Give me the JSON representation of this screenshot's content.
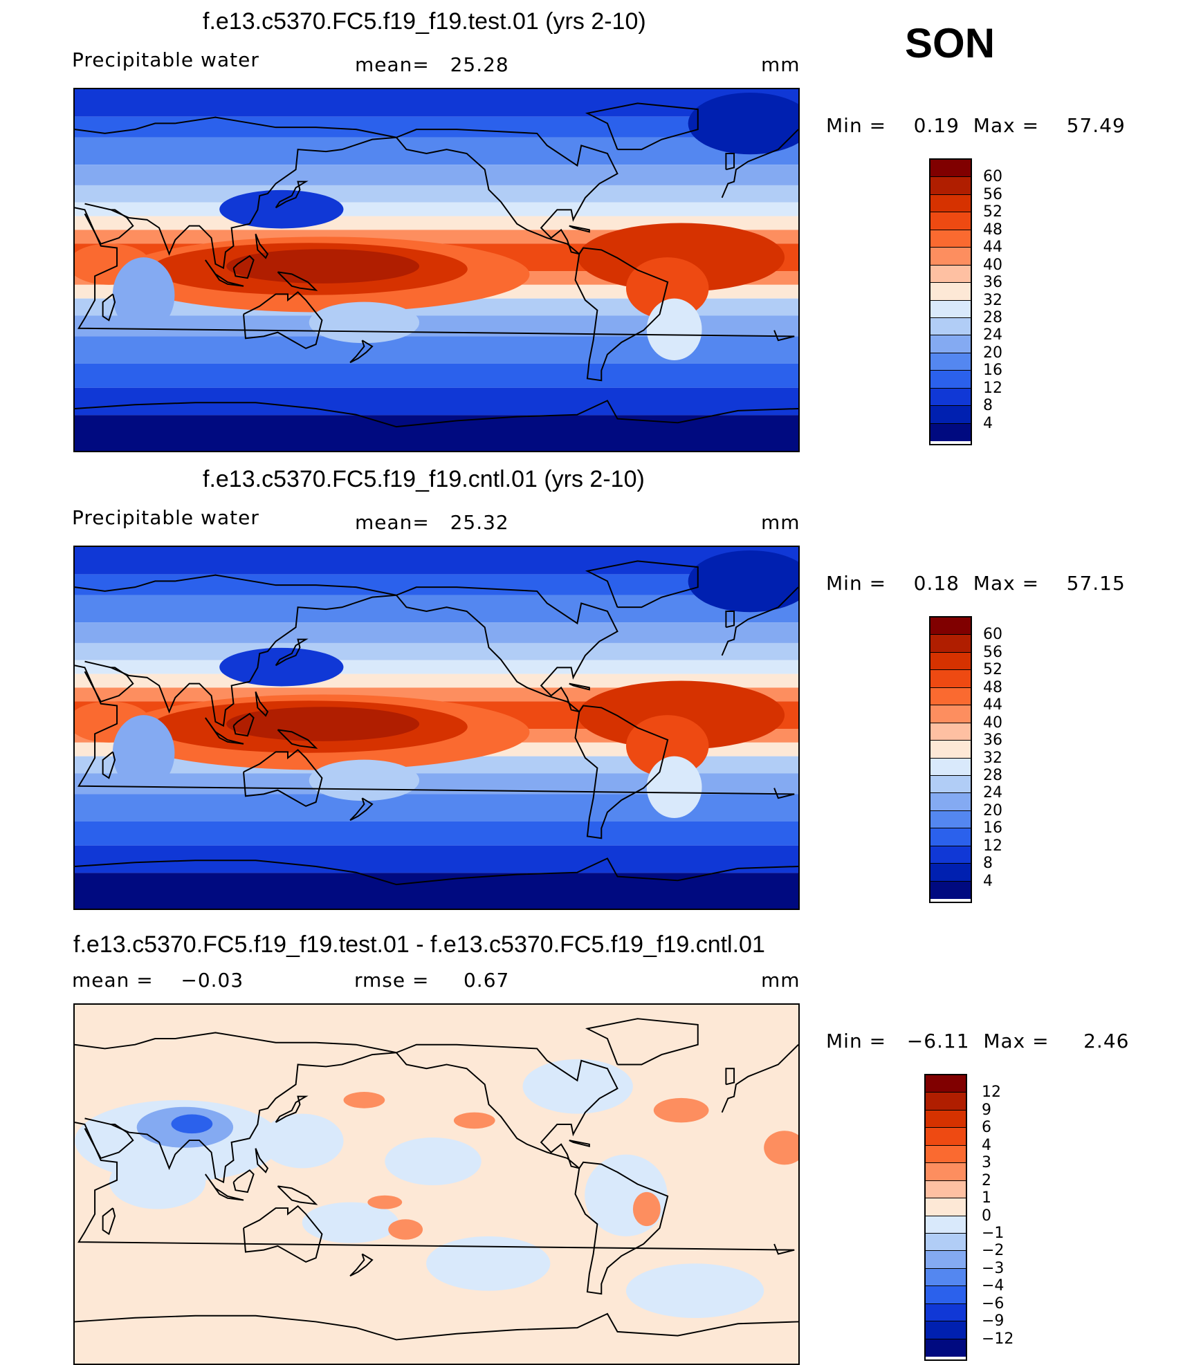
{
  "season": "SON",
  "panels": [
    {
      "title": "f.e13.c5370.FC5.f19_f19.test.01 (yrs 2-10)",
      "variable": "Precipitable water",
      "stat1": "mean=   25.28",
      "stat2": "",
      "units": "mm",
      "minmax": "Min =    0.19  Max =    57.49",
      "field": "pw",
      "levels": [
        "60",
        "56",
        "52",
        "48",
        "44",
        "40",
        "36",
        "32",
        "28",
        "24",
        "20",
        "16",
        "12",
        "8",
        "4"
      ],
      "colors": [
        "#800000",
        "#b01e00",
        "#d63200",
        "#ee4a12",
        "#fa6a30",
        "#fd8e5f",
        "#fec0a2",
        "#fde8d6",
        "#d9e9fb",
        "#b1cdf6",
        "#84aaf2",
        "#5487f0",
        "#2b61ec",
        "#1038d6",
        "#0020b0",
        "#000a80"
      ]
    },
    {
      "title": "f.e13.c5370.FC5.f19_f19.cntl.01 (yrs 2-10)",
      "variable": "Precipitable water",
      "stat1": "mean=   25.32",
      "stat2": "",
      "units": "mm",
      "minmax": "Min =    0.18  Max =    57.15",
      "field": "pw",
      "levels": [
        "60",
        "56",
        "52",
        "48",
        "44",
        "40",
        "36",
        "32",
        "28",
        "24",
        "20",
        "16",
        "12",
        "8",
        "4"
      ],
      "colors": [
        "#800000",
        "#b01e00",
        "#d63200",
        "#ee4a12",
        "#fa6a30",
        "#fd8e5f",
        "#fec0a2",
        "#fde8d6",
        "#d9e9fb",
        "#b1cdf6",
        "#84aaf2",
        "#5487f0",
        "#2b61ec",
        "#1038d6",
        "#0020b0",
        "#000a80"
      ]
    },
    {
      "title": "f.e13.c5370.FC5.f19_f19.test.01 - f.e13.c5370.FC5.f19_f19.cntl.01",
      "variable": "mean =    −0.03",
      "stat1": "rmse =     0.67",
      "stat2": "",
      "units": "mm",
      "minmax": "Min =   −6.11  Max =     2.46",
      "field": "diff",
      "levels": [
        "12",
        "9",
        "6",
        "4",
        "3",
        "2",
        "1",
        "0",
        "−1",
        "−2",
        "−3",
        "−4",
        "−6",
        "−9",
        "−12"
      ],
      "colors": [
        "#800000",
        "#b01e00",
        "#d63200",
        "#ee4a12",
        "#fa6a30",
        "#fd8e5f",
        "#fec0a2",
        "#fde8d6",
        "#d9e9fb",
        "#b1cdf6",
        "#84aaf2",
        "#5487f0",
        "#2b61ec",
        "#1038d6",
        "#0020b0",
        "#000a80"
      ]
    }
  ]
}
